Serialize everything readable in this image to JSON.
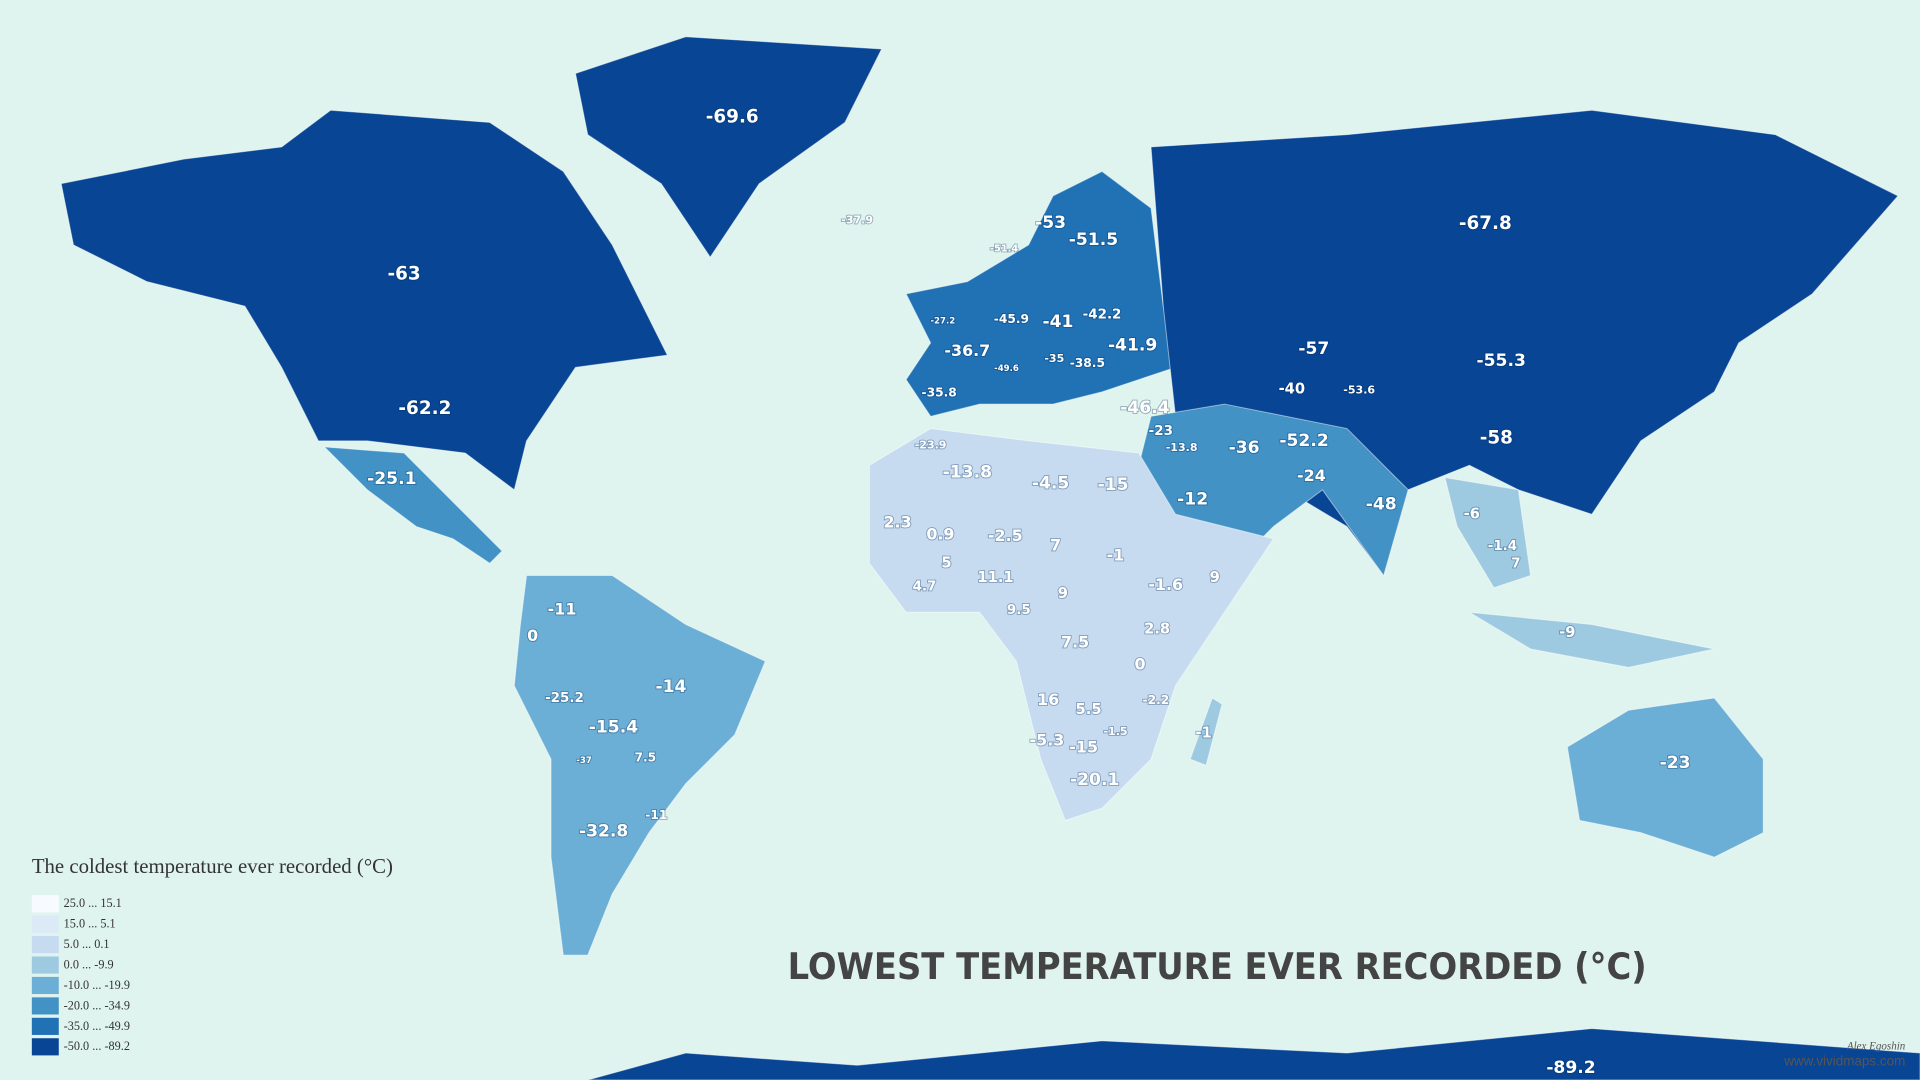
{
  "title": "LOWEST TEMPERATURE EVER RECORDED (°C)",
  "legend": {
    "title": "The coldest temperature ever recorded (°C)",
    "items": [
      {
        "label": "25.0 ... 15.1",
        "color": "#f7fbff"
      },
      {
        "label": "15.0 ... 5.1",
        "color": "#dce9f6"
      },
      {
        "label": "5.0 ... 0.1",
        "color": "#c6dbef"
      },
      {
        "label": "0.0 ... -9.9",
        "color": "#9ecae1"
      },
      {
        "label": "-10.0 ... -19.9",
        "color": "#6baed6"
      },
      {
        "label": "-20.0 ... -34.9",
        "color": "#4292c6"
      },
      {
        "label": "-35.0 ... -49.9",
        "color": "#2171b5"
      },
      {
        "label": "-50.0 ... -89.2",
        "color": "#084594"
      }
    ]
  },
  "labels": [
    "-69.6",
    "-37.9",
    "-63",
    "-62.2",
    "-25.1",
    "-67.8",
    "-51.4",
    "-53",
    "-51.5",
    "-27.2",
    "-41",
    "-45.9",
    "-42.2",
    "-36.7",
    "-41.9",
    "-38.5",
    "-35",
    "-49.6",
    "-35.8",
    "-46.4",
    "-57",
    "-55.3",
    "-40",
    "-53.6",
    "-36",
    "-52.2",
    "-24",
    "-58",
    "-48",
    "-23",
    "-13.8",
    "-12",
    "-15",
    "-4.5",
    "-13.8",
    "-23.9",
    "2.3",
    "0.9",
    "-2.5",
    "7",
    "-1",
    "9",
    "-1.6",
    "5",
    "11.1",
    "4.7",
    "9",
    "9.5",
    "2.8",
    "7.5",
    "0",
    "16",
    "5.5",
    "-2.2",
    "-1",
    "-5.3",
    "-15",
    "-1.5",
    "-20.1",
    "-11",
    "0",
    "-25.2",
    "-14",
    "-15.4",
    "7.5",
    "-37",
    "-11",
    "-32.8",
    "-6",
    "-1.4",
    "7",
    "-9",
    "-23",
    "-89.2"
  ],
  "credit": {
    "author": "Alex Egoshin",
    "site": "www.vividmaps.com"
  }
}
